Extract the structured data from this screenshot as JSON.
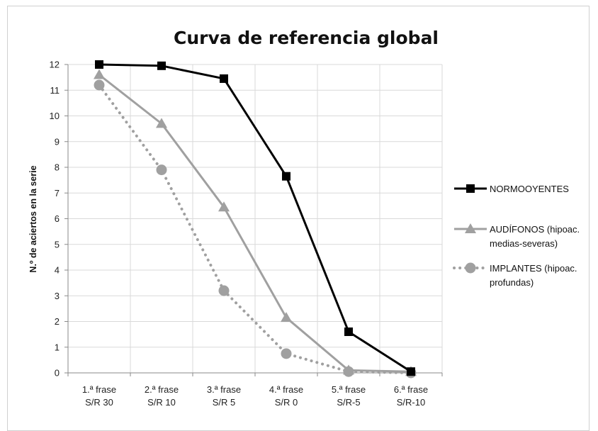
{
  "chart_data": {
    "type": "line",
    "title": "Curva de referencia global",
    "xlabel": "",
    "ylabel": "N.º de aciertos  en la serie",
    "ylim": [
      0,
      12
    ],
    "yticks": [
      "0",
      "1",
      "2",
      "3",
      "4",
      "5",
      "6",
      "7",
      "8",
      "9",
      "10",
      "11",
      "12"
    ],
    "categories": [
      [
        "1.ª frase",
        "S/R 30"
      ],
      [
        "2.ª frase",
        "S/R 10"
      ],
      [
        "3.ª frase",
        "S/R 5"
      ],
      [
        "4.ª frase",
        "S/R 0"
      ],
      [
        "5.ª frase",
        "S/R-5"
      ],
      [
        "6.ª frase",
        "S/R-10"
      ]
    ],
    "grid": true,
    "legend_position": "right",
    "series": [
      {
        "name": "NORMOOYENTES",
        "name_lines": [
          "NORMOOYENTES"
        ],
        "values": [
          12,
          11.95,
          11.45,
          7.65,
          1.6,
          0.05
        ],
        "color": "#000000",
        "marker": "square",
        "style": "solid"
      },
      {
        "name": "AUDÍFONOS (hipoac. medias-severas)",
        "name_lines": [
          "AUDÍFONOS (hipoac.",
          "medias-severas)"
        ],
        "values": [
          11.6,
          9.7,
          6.45,
          2.15,
          0.1,
          0.05
        ],
        "color": "#a0a0a0",
        "marker": "triangle",
        "style": "solid"
      },
      {
        "name": "IMPLANTES (hipoac. profundas)",
        "name_lines": [
          "IMPLANTES (hipoac.",
          "profundas)"
        ],
        "values": [
          11.2,
          7.9,
          3.2,
          0.75,
          0.05,
          0.0
        ],
        "color": "#a0a0a0",
        "marker": "circle",
        "style": "dotted"
      }
    ]
  }
}
